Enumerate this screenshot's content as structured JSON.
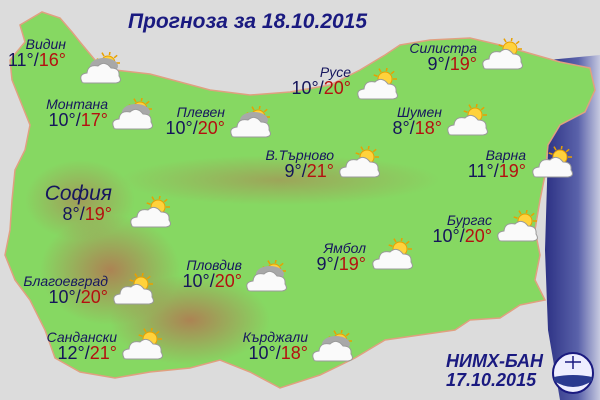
{
  "title": "Прогноза за 18.10.2015",
  "cities": [
    {
      "name": "Видин",
      "low": "11°",
      "high": "16°",
      "icon": "partly-cloudy-grey-icon"
    },
    {
      "name": "Силистра",
      "low": "9°",
      "high": "19°",
      "icon": "partly-cloudy-icon"
    },
    {
      "name": "Русе",
      "low": "10°",
      "high": "20°",
      "icon": "partly-cloudy-icon"
    },
    {
      "name": "Монтана",
      "low": "10°",
      "high": "17°",
      "icon": "partly-cloudy-grey-icon"
    },
    {
      "name": "Плевен",
      "low": "10°",
      "high": "20°",
      "icon": "partly-cloudy-grey-icon"
    },
    {
      "name": "Шумен",
      "low": "8°",
      "high": "18°",
      "icon": "partly-cloudy-icon"
    },
    {
      "name": "В.Търново",
      "low": "9°",
      "high": "21°",
      "icon": "partly-cloudy-icon"
    },
    {
      "name": "Варна",
      "low": "11°",
      "high": "19°",
      "icon": "partly-cloudy-icon"
    },
    {
      "name": "София",
      "low": "8°",
      "high": "19°",
      "icon": "partly-cloudy-icon"
    },
    {
      "name": "Бургас",
      "low": "10°",
      "high": "20°",
      "icon": "partly-cloudy-icon"
    },
    {
      "name": "Ямбол",
      "low": "9°",
      "high": "19°",
      "icon": "partly-cloudy-icon"
    },
    {
      "name": "Пловдив",
      "low": "10°",
      "high": "20°",
      "icon": "partly-cloudy-grey-icon"
    },
    {
      "name": "Благоевград",
      "low": "10°",
      "high": "20°",
      "icon": "partly-cloudy-icon"
    },
    {
      "name": "Сандански",
      "low": "12°",
      "high": "21°",
      "icon": "partly-cloudy-icon"
    },
    {
      "name": "Кърджали",
      "low": "10°",
      "high": "18°",
      "icon": "partly-cloudy-grey-icon"
    }
  ],
  "credit": {
    "org": "НИМХ-БАН",
    "date": "17.10.2015"
  },
  "colors": {
    "low": "#15155a",
    "high": "#b41010",
    "land": "#7cd45a",
    "sea": "#3a3f8f",
    "background": "#dcdcdc",
    "title": "#1a1a80"
  }
}
